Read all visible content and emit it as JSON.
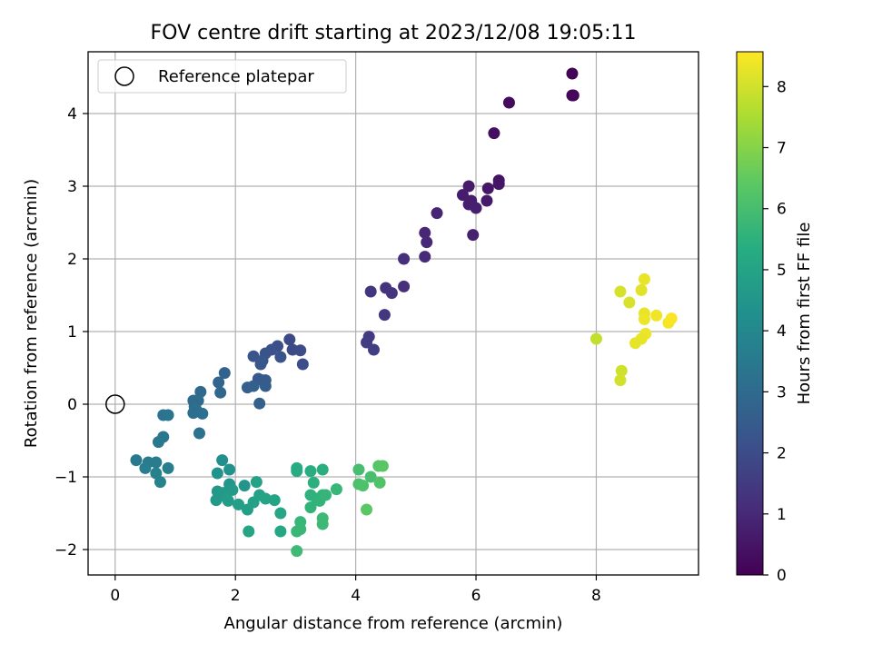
{
  "chart_data": {
    "type": "scatter",
    "title": "FOV centre drift starting at 2023/12/08 19:05:11",
    "xlabel": "Angular distance from reference (arcmin)",
    "ylabel": "Rotation from reference (arcmin)",
    "xlim": [
      -0.45,
      9.7
    ],
    "ylim": [
      -2.35,
      4.85
    ],
    "xticks": [
      0,
      2,
      4,
      6,
      8
    ],
    "yticks": [
      -2,
      -1,
      0,
      1,
      2,
      3,
      4
    ],
    "xtick_labels": [
      "0",
      "2",
      "4",
      "6",
      "8"
    ],
    "ytick_labels": [
      "−2",
      "−1",
      "0",
      "1",
      "2",
      "3",
      "4"
    ],
    "grid": true,
    "legend": {
      "position": "top-left",
      "entries": [
        {
          "label": "Reference platepar",
          "marker": "open-circle"
        }
      ]
    },
    "reference_point": {
      "x": 0,
      "y": 0
    },
    "colorbar": {
      "label": "Hours from first FF file",
      "colormap": "viridis",
      "range": [
        0,
        8.57
      ],
      "ticks": [
        0,
        1,
        2,
        3,
        4,
        5,
        6,
        7,
        8
      ],
      "tick_labels": [
        "0",
        "1",
        "2",
        "3",
        "4",
        "5",
        "6",
        "7",
        "8"
      ]
    },
    "points": [
      {
        "x": 7.6,
        "y": 4.55,
        "c": 0.05
      },
      {
        "x": 7.6,
        "y": 4.25,
        "c": 0.1
      },
      {
        "x": 7.62,
        "y": 4.25,
        "c": 0.15
      },
      {
        "x": 6.55,
        "y": 4.15,
        "c": 0.25
      },
      {
        "x": 6.3,
        "y": 3.73,
        "c": 0.35
      },
      {
        "x": 6.38,
        "y": 3.08,
        "c": 0.45
      },
      {
        "x": 6.38,
        "y": 3.03,
        "c": 0.5
      },
      {
        "x": 6.2,
        "y": 2.97,
        "c": 0.55
      },
      {
        "x": 6.18,
        "y": 2.8,
        "c": 0.6
      },
      {
        "x": 5.88,
        "y": 3.0,
        "c": 0.65
      },
      {
        "x": 5.78,
        "y": 2.88,
        "c": 0.7
      },
      {
        "x": 5.92,
        "y": 2.8,
        "c": 0.72
      },
      {
        "x": 5.88,
        "y": 2.75,
        "c": 0.75
      },
      {
        "x": 6.0,
        "y": 2.7,
        "c": 0.78
      },
      {
        "x": 5.95,
        "y": 2.33,
        "c": 0.8
      },
      {
        "x": 5.35,
        "y": 2.63,
        "c": 0.9
      },
      {
        "x": 5.15,
        "y": 2.36,
        "c": 0.95
      },
      {
        "x": 5.18,
        "y": 2.23,
        "c": 1.0
      },
      {
        "x": 5.15,
        "y": 2.03,
        "c": 1.05
      },
      {
        "x": 4.8,
        "y": 2.0,
        "c": 1.15
      },
      {
        "x": 4.8,
        "y": 1.62,
        "c": 1.2
      },
      {
        "x": 4.5,
        "y": 1.6,
        "c": 1.25
      },
      {
        "x": 4.6,
        "y": 1.53,
        "c": 1.3
      },
      {
        "x": 4.25,
        "y": 1.55,
        "c": 1.35
      },
      {
        "x": 4.48,
        "y": 1.23,
        "c": 1.4
      },
      {
        "x": 4.22,
        "y": 0.93,
        "c": 1.5
      },
      {
        "x": 4.18,
        "y": 0.85,
        "c": 1.55
      },
      {
        "x": 4.3,
        "y": 0.75,
        "c": 1.6
      },
      {
        "x": 2.9,
        "y": 0.89,
        "c": 1.9
      },
      {
        "x": 2.95,
        "y": 0.75,
        "c": 1.95
      },
      {
        "x": 3.08,
        "y": 0.74,
        "c": 2.0
      },
      {
        "x": 3.12,
        "y": 0.55,
        "c": 2.05
      },
      {
        "x": 2.7,
        "y": 0.8,
        "c": 2.1
      },
      {
        "x": 2.6,
        "y": 0.75,
        "c": 2.15
      },
      {
        "x": 2.5,
        "y": 0.7,
        "c": 2.2
      },
      {
        "x": 2.75,
        "y": 0.65,
        "c": 2.2
      },
      {
        "x": 2.3,
        "y": 0.66,
        "c": 2.25
      },
      {
        "x": 2.45,
        "y": 0.6,
        "c": 2.3
      },
      {
        "x": 2.42,
        "y": 0.55,
        "c": 2.35
      },
      {
        "x": 2.38,
        "y": 0.35,
        "c": 2.4
      },
      {
        "x": 2.45,
        "y": 0.33,
        "c": 2.45
      },
      {
        "x": 2.5,
        "y": 0.33,
        "c": 2.5
      },
      {
        "x": 2.5,
        "y": 0.25,
        "c": 2.55
      },
      {
        "x": 2.3,
        "y": 0.25,
        "c": 2.6
      },
      {
        "x": 2.2,
        "y": 0.23,
        "c": 2.6
      },
      {
        "x": 2.4,
        "y": 0.01,
        "c": 2.65
      },
      {
        "x": 1.82,
        "y": 0.43,
        "c": 2.75
      },
      {
        "x": 1.72,
        "y": 0.3,
        "c": 2.8
      },
      {
        "x": 1.75,
        "y": 0.16,
        "c": 2.85
      },
      {
        "x": 1.42,
        "y": 0.17,
        "c": 2.95
      },
      {
        "x": 1.3,
        "y": 0.05,
        "c": 3.0
      },
      {
        "x": 1.38,
        "y": 0.05,
        "c": 3.0
      },
      {
        "x": 1.32,
        "y": -0.03,
        "c": 3.05
      },
      {
        "x": 1.35,
        "y": -0.08,
        "c": 3.1
      },
      {
        "x": 1.3,
        "y": -0.12,
        "c": 3.12
      },
      {
        "x": 1.45,
        "y": -0.13,
        "c": 3.15
      },
      {
        "x": 1.4,
        "y": -0.4,
        "c": 3.2
      },
      {
        "x": 0.8,
        "y": -0.15,
        "c": 3.3
      },
      {
        "x": 0.88,
        "y": -0.15,
        "c": 3.35
      },
      {
        "x": 0.8,
        "y": -0.45,
        "c": 3.4
      },
      {
        "x": 0.72,
        "y": -0.52,
        "c": 3.45
      },
      {
        "x": 0.35,
        "y": -0.77,
        "c": 3.5
      },
      {
        "x": 0.55,
        "y": -0.8,
        "c": 3.55
      },
      {
        "x": 0.68,
        "y": -0.8,
        "c": 3.6
      },
      {
        "x": 0.5,
        "y": -0.88,
        "c": 3.65
      },
      {
        "x": 0.88,
        "y": -0.88,
        "c": 3.7
      },
      {
        "x": 0.68,
        "y": -0.95,
        "c": 3.75
      },
      {
        "x": 0.75,
        "y": -1.07,
        "c": 3.8
      },
      {
        "x": 1.78,
        "y": -0.77,
        "c": 4.3
      },
      {
        "x": 1.7,
        "y": -0.95,
        "c": 4.35
      },
      {
        "x": 1.9,
        "y": -0.9,
        "c": 4.4
      },
      {
        "x": 2.15,
        "y": -1.12,
        "c": 4.5
      },
      {
        "x": 1.9,
        "y": -1.1,
        "c": 4.5
      },
      {
        "x": 1.7,
        "y": -1.2,
        "c": 4.55
      },
      {
        "x": 1.8,
        "y": -1.22,
        "c": 4.6
      },
      {
        "x": 1.95,
        "y": -1.18,
        "c": 4.65
      },
      {
        "x": 1.68,
        "y": -1.32,
        "c": 4.65
      },
      {
        "x": 1.85,
        "y": -1.28,
        "c": 4.7
      },
      {
        "x": 1.88,
        "y": -1.33,
        "c": 4.75
      },
      {
        "x": 2.05,
        "y": -1.38,
        "c": 4.8
      },
      {
        "x": 2.2,
        "y": -1.45,
        "c": 4.85
      },
      {
        "x": 2.35,
        "y": -1.07,
        "c": 4.9
      },
      {
        "x": 2.3,
        "y": -1.35,
        "c": 4.9
      },
      {
        "x": 2.4,
        "y": -1.25,
        "c": 4.95
      },
      {
        "x": 2.5,
        "y": -1.3,
        "c": 5.0
      },
      {
        "x": 2.65,
        "y": -1.32,
        "c": 5.0
      },
      {
        "x": 2.22,
        "y": -1.75,
        "c": 5.05
      },
      {
        "x": 2.75,
        "y": -1.5,
        "c": 5.1
      },
      {
        "x": 2.75,
        "y": -1.75,
        "c": 5.15
      },
      {
        "x": 3.02,
        "y": -0.88,
        "c": 5.3
      },
      {
        "x": 3.02,
        "y": -0.92,
        "c": 5.3
      },
      {
        "x": 3.25,
        "y": -0.92,
        "c": 5.35
      },
      {
        "x": 3.45,
        "y": -0.9,
        "c": 5.4
      },
      {
        "x": 3.3,
        "y": -1.08,
        "c": 5.45
      },
      {
        "x": 3.25,
        "y": -1.25,
        "c": 5.5
      },
      {
        "x": 3.35,
        "y": -1.3,
        "c": 5.5
      },
      {
        "x": 3.45,
        "y": -1.25,
        "c": 5.55
      },
      {
        "x": 3.4,
        "y": -1.33,
        "c": 5.6
      },
      {
        "x": 3.25,
        "y": -1.42,
        "c": 5.6
      },
      {
        "x": 3.5,
        "y": -1.25,
        "c": 5.65
      },
      {
        "x": 3.68,
        "y": -1.17,
        "c": 5.7
      },
      {
        "x": 3.08,
        "y": -1.62,
        "c": 5.7
      },
      {
        "x": 3.08,
        "y": -1.72,
        "c": 5.75
      },
      {
        "x": 3.02,
        "y": -1.75,
        "c": 5.75
      },
      {
        "x": 3.45,
        "y": -1.57,
        "c": 5.8
      },
      {
        "x": 3.45,
        "y": -1.65,
        "c": 5.8
      },
      {
        "x": 3.02,
        "y": -2.02,
        "c": 5.85
      },
      {
        "x": 4.05,
        "y": -0.9,
        "c": 6.0
      },
      {
        "x": 4.25,
        "y": -1.0,
        "c": 6.05
      },
      {
        "x": 4.05,
        "y": -1.1,
        "c": 6.1
      },
      {
        "x": 4.12,
        "y": -1.12,
        "c": 6.15
      },
      {
        "x": 4.4,
        "y": -1.08,
        "c": 6.2
      },
      {
        "x": 4.38,
        "y": -0.85,
        "c": 6.3
      },
      {
        "x": 4.45,
        "y": -0.85,
        "c": 6.35
      },
      {
        "x": 4.18,
        "y": -1.45,
        "c": 6.4
      },
      {
        "x": 8.0,
        "y": 0.9,
        "c": 7.8
      },
      {
        "x": 8.42,
        "y": 0.46,
        "c": 7.95
      },
      {
        "x": 8.4,
        "y": 0.33,
        "c": 8.0
      },
      {
        "x": 8.4,
        "y": 1.55,
        "c": 8.05
      },
      {
        "x": 8.55,
        "y": 1.4,
        "c": 8.1
      },
      {
        "x": 8.75,
        "y": 1.57,
        "c": 8.2
      },
      {
        "x": 8.8,
        "y": 1.72,
        "c": 8.3
      },
      {
        "x": 8.8,
        "y": 1.25,
        "c": 8.3
      },
      {
        "x": 8.8,
        "y": 1.17,
        "c": 8.35
      },
      {
        "x": 9.0,
        "y": 1.22,
        "c": 8.4
      },
      {
        "x": 9.2,
        "y": 1.12,
        "c": 8.45
      },
      {
        "x": 9.25,
        "y": 1.18,
        "c": 8.5
      },
      {
        "x": 8.82,
        "y": 0.97,
        "c": 8.35
      },
      {
        "x": 8.75,
        "y": 0.9,
        "c": 8.3
      },
      {
        "x": 8.65,
        "y": 0.84,
        "c": 8.25
      }
    ]
  }
}
